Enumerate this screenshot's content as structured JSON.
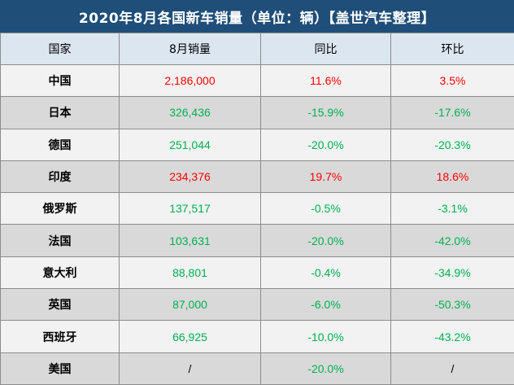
{
  "title": "2020年8月各国新车销量（单位：辆）【盖世汽车整理】",
  "colors": {
    "title_bg": "#1f4e79",
    "header_bg": "#dce6f1",
    "positive": "#ff0000",
    "negative": "#00b050"
  },
  "chart_data": {
    "type": "table",
    "title": "2020年8月各国新车销量（单位：辆）【盖世汽车整理】",
    "columns": [
      "国家",
      "8月销量",
      "同比",
      "环比"
    ],
    "rows": [
      {
        "country": "中国",
        "sales": "2,186,000",
        "yoy": "11.6%",
        "mom": "3.5%",
        "sales_value": 2186000,
        "yoy_value": 11.6,
        "mom_value": 3.5
      },
      {
        "country": "日本",
        "sales": "326,436",
        "yoy": "-15.9%",
        "mom": "-17.6%",
        "sales_value": 326436,
        "yoy_value": -15.9,
        "mom_value": -17.6
      },
      {
        "country": "德国",
        "sales": "251,044",
        "yoy": "-20.0%",
        "mom": "-20.3%",
        "sales_value": 251044,
        "yoy_value": -20.0,
        "mom_value": -20.3
      },
      {
        "country": "印度",
        "sales": "234,376",
        "yoy": "19.7%",
        "mom": "18.6%",
        "sales_value": 234376,
        "yoy_value": 19.7,
        "mom_value": 18.6
      },
      {
        "country": "俄罗斯",
        "sales": "137,517",
        "yoy": "-0.5%",
        "mom": "-3.1%",
        "sales_value": 137517,
        "yoy_value": -0.5,
        "mom_value": -3.1
      },
      {
        "country": "法国",
        "sales": "103,631",
        "yoy": "-20.0%",
        "mom": "-42.0%",
        "sales_value": 103631,
        "yoy_value": -20.0,
        "mom_value": -42.0
      },
      {
        "country": "意大利",
        "sales": "88,801",
        "yoy": "-0.4%",
        "mom": "-34.9%",
        "sales_value": 88801,
        "yoy_value": -0.4,
        "mom_value": -34.9
      },
      {
        "country": "英国",
        "sales": "87,000",
        "yoy": "-6.0%",
        "mom": "-50.3%",
        "sales_value": 87000,
        "yoy_value": -6.0,
        "mom_value": -50.3
      },
      {
        "country": "西班牙",
        "sales": "66,925",
        "yoy": "-10.0%",
        "mom": "-43.2%",
        "sales_value": 66925,
        "yoy_value": -10.0,
        "mom_value": -43.2
      },
      {
        "country": "美国",
        "sales": "/",
        "yoy": "-20.0%",
        "mom": "/",
        "sales_value": null,
        "yoy_value": -20.0,
        "mom_value": null
      }
    ]
  }
}
